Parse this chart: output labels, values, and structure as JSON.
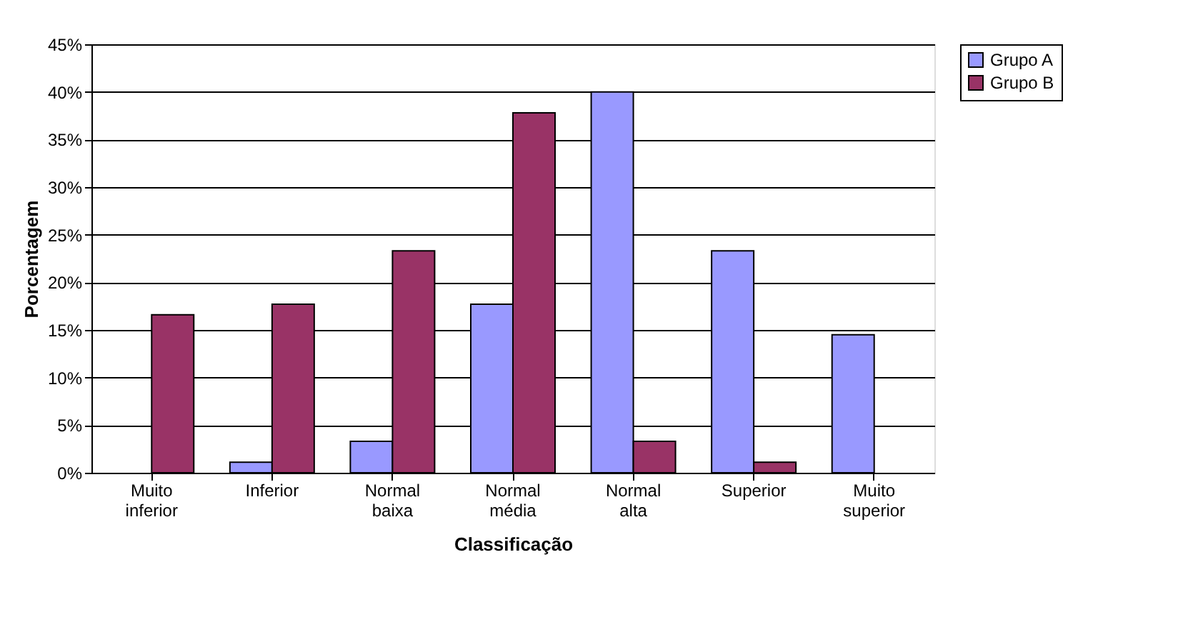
{
  "chart_data": {
    "type": "bar",
    "xlabel": "Classificação",
    "ylabel": "Porcentagem",
    "categories": [
      "Muito inferior",
      "Inferior",
      "Normal baixa",
      "Normal média",
      "Normal alta",
      "Superior",
      "Muito superior"
    ],
    "series": [
      {
        "name": "Grupo A",
        "color": "#9999ff",
        "values": [
          0,
          1.1,
          3.3,
          17.7,
          40,
          23.3,
          14.5
        ]
      },
      {
        "name": "Grupo B",
        "color": "#993366",
        "values": [
          16.6,
          17.7,
          23.3,
          37.8,
          3.3,
          1.1,
          0
        ]
      }
    ],
    "ylim": [
      0,
      45
    ],
    "yticks": [
      {
        "value": 0,
        "label": "0%"
      },
      {
        "value": 5,
        "label": "5%"
      },
      {
        "value": 10,
        "label": "10%"
      },
      {
        "value": 15,
        "label": "15%"
      },
      {
        "value": 20,
        "label": "20%"
      },
      {
        "value": 25,
        "label": "25%"
      },
      {
        "value": 30,
        "label": "30%"
      },
      {
        "value": 35,
        "label": "35%"
      },
      {
        "value": 40,
        "label": "40%"
      },
      {
        "value": 45,
        "label": "45%"
      }
    ],
    "grid": "y",
    "legend": "right"
  }
}
